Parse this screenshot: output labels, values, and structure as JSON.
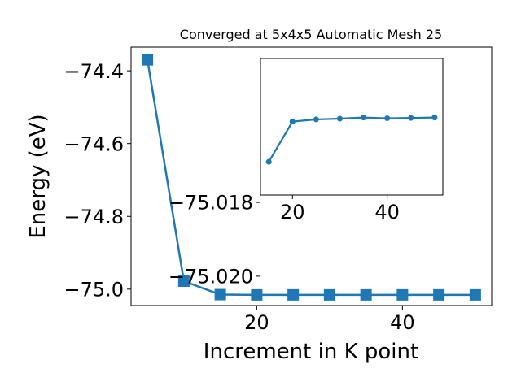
{
  "chart_data": [
    {
      "type": "line",
      "title": "Converged at 5x4x5 Automatic Mesh 25",
      "xlabel": "Increment in K point",
      "ylabel": "Energy (eV)",
      "x": [
        5,
        10,
        15,
        20,
        25,
        30,
        35,
        40,
        45,
        50
      ],
      "series": [
        {
          "values": [
            -74.37,
            -74.978,
            -75.015,
            -75.0157,
            -75.0157,
            -75.0157,
            -75.0157,
            -75.0157,
            -75.0157,
            -75.0157
          ]
        }
      ],
      "xlim": [
        2.75,
        52.25
      ],
      "ylim": [
        -75.045,
        -74.335
      ],
      "xticks": [
        20,
        40
      ],
      "xtick_labels": [
        "20",
        "40"
      ],
      "yticks": [
        -75.0,
        -74.8,
        -74.6,
        -74.4
      ],
      "ytick_labels": [
        "−75.0",
        "−74.8",
        "−74.6",
        "−74.4"
      ],
      "marker": "square",
      "color": "#1f77b4",
      "grid": false
    },
    {
      "type": "line",
      "title": "",
      "xlabel": "",
      "ylabel": "",
      "x": [
        15,
        20,
        25,
        30,
        35,
        40,
        45,
        50
      ],
      "series": [
        {
          "values": [
            -75.0169,
            -75.01581,
            -75.01575,
            -75.01573,
            -75.0157,
            -75.01572,
            -75.01571,
            -75.0157
          ]
        }
      ],
      "xlim": [
        13.25,
        51.75
      ],
      "ylim": [
        -75.0178,
        -75.0141
      ],
      "xticks": [
        20,
        40
      ],
      "xtick_labels": [
        "20",
        "40"
      ],
      "yticks": [
        -75.018,
        -75.02
      ],
      "ytick_labels": [
        "−75.018",
        "−75.020"
      ],
      "marker": "circle",
      "color": "#1f77b4",
      "grid": false
    }
  ]
}
